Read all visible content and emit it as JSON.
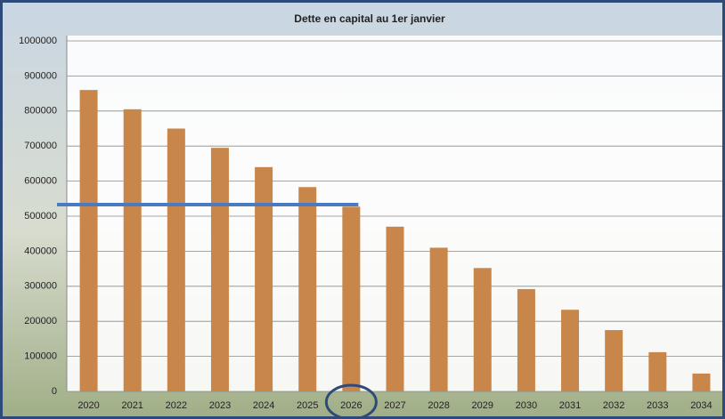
{
  "chart_data": {
    "type": "bar",
    "title": "Dette en capital au 1er janvier",
    "categories": [
      "2020",
      "2021",
      "2022",
      "2023",
      "2024",
      "2025",
      "2026",
      "2027",
      "2028",
      "2029",
      "2030",
      "2031",
      "2032",
      "2033",
      "2034"
    ],
    "values": [
      860000,
      805000,
      750000,
      695000,
      640000,
      583000,
      527000,
      470000,
      410000,
      352000,
      292000,
      233000,
      175000,
      112000,
      51000
    ],
    "color": "#c8864a",
    "ylim": [
      0,
      1000000
    ],
    "yticks": [
      0,
      100000,
      200000,
      300000,
      400000,
      500000,
      600000,
      700000,
      800000,
      900000,
      1000000
    ],
    "grid": true,
    "reference_line": {
      "value": 533000,
      "color": "#4a7abf"
    },
    "highlight_index": 6
  }
}
